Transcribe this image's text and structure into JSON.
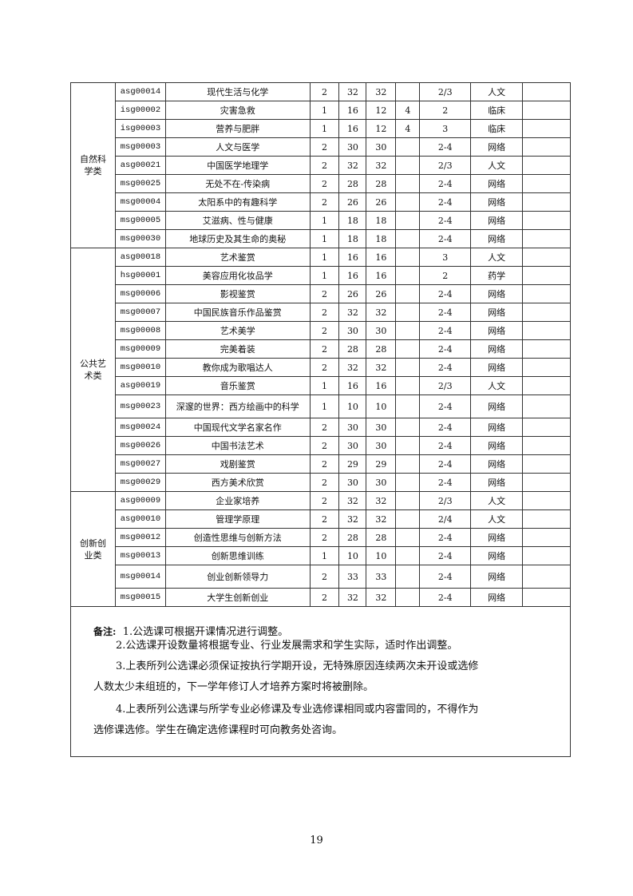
{
  "groups": [
    {
      "category": "自然科学类",
      "rows": [
        [
          "asg00014",
          "现代生活与化学",
          "2",
          "32",
          "32",
          "",
          "2/3",
          "人文",
          ""
        ],
        [
          "isg00002",
          "灾害急救",
          "1",
          "16",
          "12",
          "4",
          "2",
          "临床",
          ""
        ],
        [
          "isg00003",
          "营养与肥胖",
          "1",
          "16",
          "12",
          "4",
          "3",
          "临床",
          ""
        ],
        [
          "msg00003",
          "人文与医学",
          "2",
          "30",
          "30",
          "",
          "2-4",
          "网络",
          ""
        ],
        [
          "asg00021",
          "中国医学地理学",
          "2",
          "32",
          "32",
          "",
          "2/3",
          "人文",
          ""
        ],
        [
          "msg00025",
          "无处不在-传染病",
          "2",
          "28",
          "28",
          "",
          "2-4",
          "网络",
          ""
        ],
        [
          "msg00004",
          "太阳系中的有趣科学",
          "2",
          "26",
          "26",
          "",
          "2-4",
          "网络",
          ""
        ],
        [
          "msg00005",
          "艾滋病、性与健康",
          "1",
          "18",
          "18",
          "",
          "2-4",
          "网络",
          ""
        ],
        [
          "msg00030",
          "地球历史及其生命的奥秘",
          "1",
          "18",
          "18",
          "",
          "2-4",
          "网络",
          ""
        ]
      ]
    },
    {
      "category": "公共艺术类",
      "rows": [
        [
          "asg00018",
          "艺术鉴赏",
          "1",
          "16",
          "16",
          "",
          "3",
          "人文",
          ""
        ],
        [
          "hsg00001",
          "美容应用化妆品学",
          "1",
          "16",
          "16",
          "",
          "2",
          "药学",
          ""
        ],
        [
          "msg00006",
          "影视鉴赏",
          "2",
          "26",
          "26",
          "",
          "2-4",
          "网络",
          ""
        ],
        [
          "msg00007",
          "中国民族音乐作品鉴赏",
          "2",
          "32",
          "32",
          "",
          "2-4",
          "网络",
          ""
        ],
        [
          "msg00008",
          "艺术美学",
          "2",
          "30",
          "30",
          "",
          "2-4",
          "网络",
          ""
        ],
        [
          "msg00009",
          "完美着装",
          "2",
          "28",
          "28",
          "",
          "2-4",
          "网络",
          ""
        ],
        [
          "msg00010",
          "教你成为歌唱达人",
          "2",
          "32",
          "32",
          "",
          "2-4",
          "网络",
          ""
        ],
        [
          "asg00019",
          "音乐鉴赏",
          "1",
          "16",
          "16",
          "",
          "2/3",
          "人文",
          ""
        ],
        [
          "msg00023",
          "深邃的世界：西方绘画中的科学",
          "1",
          "10",
          "10",
          "",
          "2-4",
          "网络",
          ""
        ],
        [
          "msg00024",
          "中国现代文学名家名作",
          "2",
          "30",
          "30",
          "",
          "2-4",
          "网络",
          ""
        ],
        [
          "msg00026",
          "中国书法艺术",
          "2",
          "30",
          "30",
          "",
          "2-4",
          "网络",
          ""
        ],
        [
          "msg00027",
          "戏剧鉴赏",
          "2",
          "29",
          "29",
          "",
          "2-4",
          "网络",
          ""
        ],
        [
          "msg00029",
          "西方美术欣赏",
          "2",
          "30",
          "30",
          "",
          "2-4",
          "网络",
          ""
        ]
      ]
    },
    {
      "category": "创新创业类",
      "rows": [
        [
          "asg00009",
          "企业家培养",
          "2",
          "32",
          "32",
          "",
          "2/3",
          "人文",
          ""
        ],
        [
          "asg00010",
          "管理学原理",
          "2",
          "32",
          "32",
          "",
          "2/4",
          "人文",
          ""
        ],
        [
          "msg00012",
          "创造性思维与创新方法",
          "2",
          "28",
          "28",
          "",
          "2-4",
          "网络",
          ""
        ],
        [
          "msg00013",
          "创新思维训练",
          "1",
          "10",
          "10",
          "",
          "2-4",
          "网络",
          ""
        ],
        [
          "msg00014",
          "创业创新领导力",
          "2",
          "33",
          "33",
          "",
          "2-4",
          "网络",
          ""
        ],
        [
          "msg00015",
          "大学生创新创业",
          "2",
          "32",
          "32",
          "",
          "2-4",
          "网络",
          ""
        ]
      ]
    }
  ],
  "notes": {
    "label": "备注:",
    "items": [
      "1.公选课可根据开课情况进行调整。",
      "2.公选课开设数量将根据专业、行业发展需求和学生实际，适时作出调整。",
      "3.上表所列公选课必须保证按执行学期开设，无特殊原因连续两次未开设或选修",
      "人数太少未组班的，下一学年修订人才培养方案时将被删除。",
      "4.上表所列公选课与所学专业必修课及专业选修课相同或内容雷同的，不得作为",
      "选修课选修。学生在确定选修课程时可向教务处咨询。"
    ]
  },
  "page_number": "19"
}
